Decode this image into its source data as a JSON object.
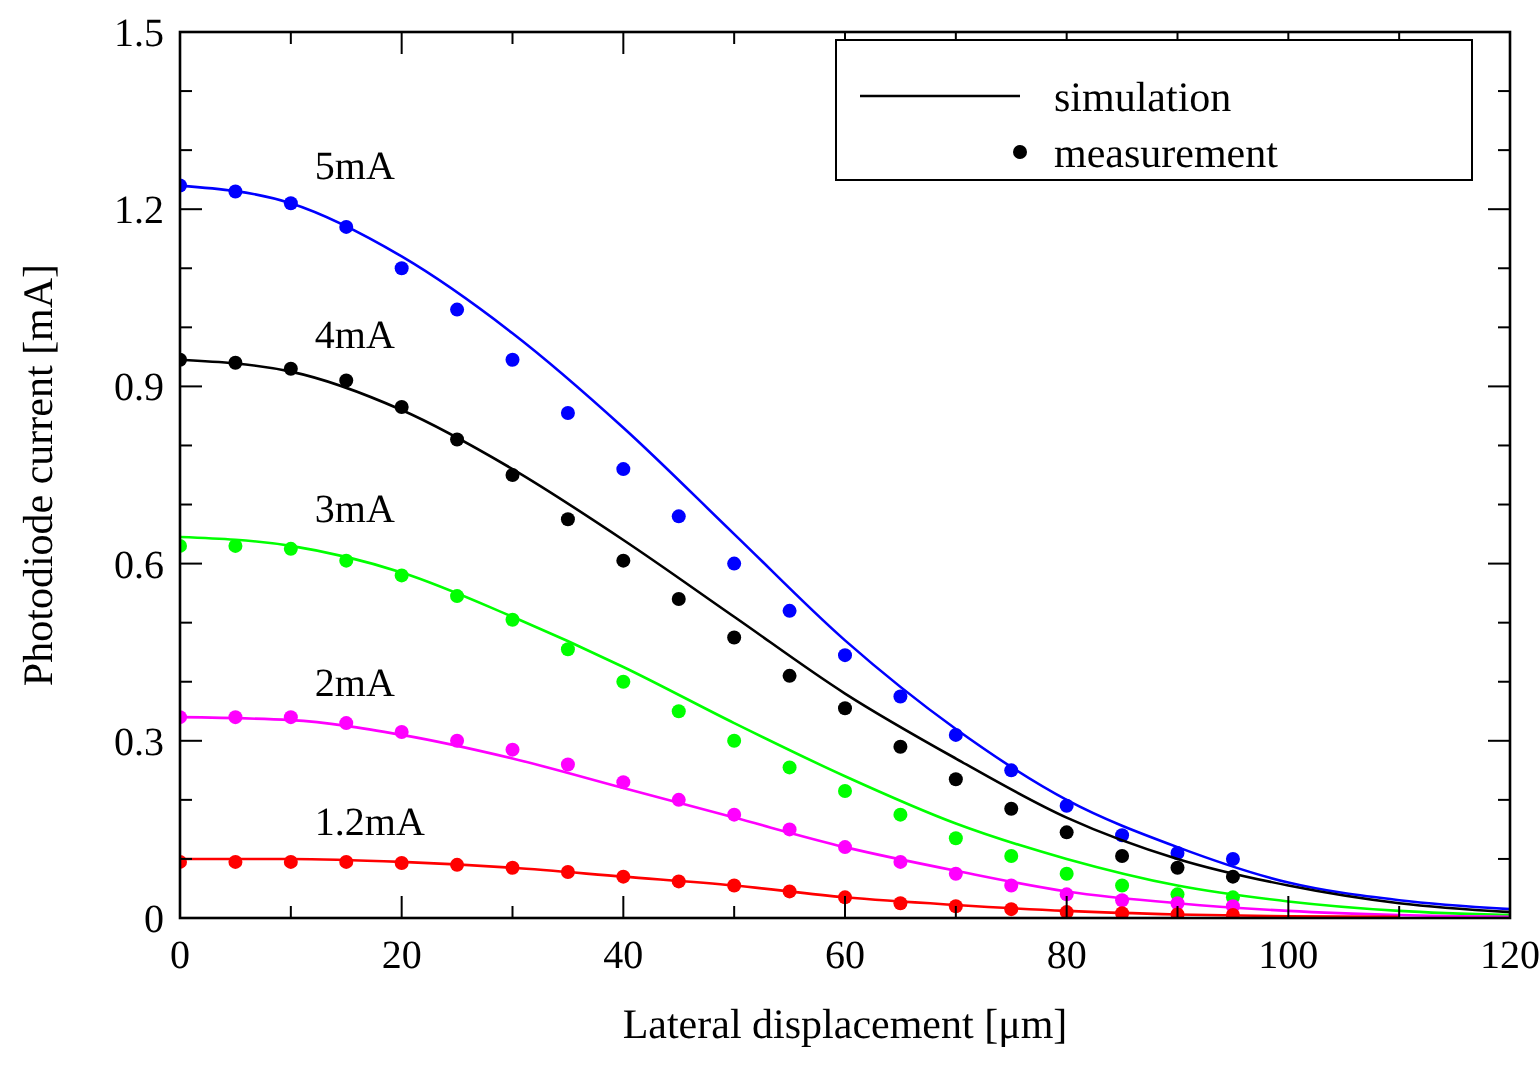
{
  "chart_data": {
    "type": "line",
    "xlabel": "Lateral displacement [μm]",
    "ylabel": "Photodiode current [mA]",
    "xlim": [
      0,
      120
    ],
    "ylim": [
      0,
      1.5
    ],
    "xticks": [
      0,
      {
        "value": 10,
        "label": null
      },
      20,
      {
        "value": 30,
        "label": null
      },
      40,
      {
        "value": 50,
        "label": null
      },
      60,
      {
        "value": 70,
        "label": null
      },
      80,
      {
        "value": 90,
        "label": null
      },
      100,
      {
        "value": 110,
        "label": null
      },
      120
    ],
    "yticks": [
      0,
      {
        "value": 0.1,
        "label": null
      },
      {
        "value": 0.2,
        "label": null
      },
      0.3,
      {
        "value": 0.4,
        "label": null
      },
      {
        "value": 0.5,
        "label": null
      },
      0.6,
      {
        "value": 0.7,
        "label": null
      },
      {
        "value": 0.8,
        "label": null
      },
      0.9,
      {
        "value": 1.0,
        "label": null
      },
      {
        "value": 1.1,
        "label": null
      },
      1.2,
      {
        "value": 1.3,
        "label": null
      },
      {
        "value": 1.4,
        "label": null
      },
      1.5
    ],
    "legend": "top right",
    "grid": false,
    "series": [
      {
        "color": "#0000ff",
        "marker": "none",
        "x": [
          0,
          10,
          20,
          30,
          40,
          50,
          60,
          70,
          80,
          90,
          100,
          110,
          120
        ],
        "values": [
          1.24,
          1.21,
          1.12,
          0.99,
          0.83,
          0.65,
          0.47,
          0.32,
          0.2,
          0.12,
          0.06,
          0.03,
          0.015
        ]
      },
      {
        "type": "scatter",
        "color": "#0000ff",
        "marker": "circle",
        "x": [
          0,
          5,
          10,
          15,
          20,
          25,
          30,
          35,
          40,
          45,
          50,
          55,
          60,
          65,
          70,
          75,
          80,
          85,
          90,
          95
        ],
        "values": [
          1.24,
          1.23,
          1.21,
          1.17,
          1.1,
          1.03,
          0.945,
          0.855,
          0.76,
          0.68,
          0.6,
          0.52,
          0.445,
          0.375,
          0.31,
          0.25,
          0.19,
          0.14,
          0.11,
          0.1
        ]
      },
      {
        "name": "simulation",
        "color": "#000000",
        "marker": "none",
        "x": [
          0,
          10,
          20,
          30,
          40,
          50,
          60,
          70,
          80,
          90,
          100,
          110,
          120
        ],
        "values": [
          0.945,
          0.925,
          0.86,
          0.76,
          0.64,
          0.51,
          0.38,
          0.27,
          0.17,
          0.1,
          0.055,
          0.025,
          0.01
        ]
      },
      {
        "name": "measurement",
        "type": "scatter",
        "color": "#000000",
        "marker": "circle",
        "x": [
          0,
          5,
          10,
          15,
          20,
          25,
          30,
          35,
          40,
          45,
          50,
          55,
          60,
          65,
          70,
          75,
          80,
          85,
          90,
          95
        ],
        "values": [
          0.945,
          0.94,
          0.93,
          0.91,
          0.865,
          0.81,
          0.75,
          0.675,
          0.605,
          0.54,
          0.475,
          0.41,
          0.355,
          0.29,
          0.235,
          0.185,
          0.145,
          0.105,
          0.085,
          0.07
        ]
      },
      {
        "color": "#00ff00",
        "marker": "none",
        "x": [
          0,
          10,
          20,
          30,
          40,
          50,
          60,
          70,
          80,
          90,
          100,
          110,
          120
        ],
        "values": [
          0.645,
          0.63,
          0.585,
          0.51,
          0.425,
          0.33,
          0.24,
          0.16,
          0.1,
          0.055,
          0.028,
          0.012,
          0.005
        ]
      },
      {
        "type": "scatter",
        "color": "#00ff00",
        "marker": "circle",
        "x": [
          0,
          5,
          10,
          15,
          20,
          25,
          30,
          35,
          40,
          45,
          50,
          55,
          60,
          65,
          70,
          75,
          80,
          85,
          90,
          95
        ],
        "values": [
          0.63,
          0.63,
          0.625,
          0.605,
          0.58,
          0.545,
          0.505,
          0.455,
          0.4,
          0.35,
          0.3,
          0.255,
          0.215,
          0.175,
          0.135,
          0.105,
          0.075,
          0.055,
          0.04,
          0.035
        ]
      },
      {
        "color": "#ff00ff",
        "marker": "none",
        "x": [
          0,
          10,
          20,
          30,
          40,
          50,
          60,
          70,
          80,
          90,
          100,
          110,
          120
        ],
        "values": [
          0.34,
          0.335,
          0.31,
          0.27,
          0.22,
          0.17,
          0.12,
          0.08,
          0.045,
          0.025,
          0.012,
          0.005,
          0.002
        ]
      },
      {
        "type": "scatter",
        "color": "#ff00ff",
        "marker": "circle",
        "x": [
          0,
          5,
          10,
          15,
          20,
          25,
          30,
          35,
          40,
          45,
          50,
          55,
          60,
          65,
          70,
          75,
          80,
          85,
          90,
          95
        ],
        "values": [
          0.34,
          0.34,
          0.34,
          0.33,
          0.315,
          0.3,
          0.285,
          0.26,
          0.23,
          0.2,
          0.175,
          0.15,
          0.12,
          0.095,
          0.075,
          0.055,
          0.04,
          0.03,
          0.025,
          0.02
        ]
      },
      {
        "color": "#ff0000",
        "marker": "none",
        "x": [
          0,
          10,
          20,
          30,
          40,
          50,
          60,
          70,
          80,
          90,
          100,
          110
        ],
        "values": [
          0.1,
          0.1,
          0.095,
          0.085,
          0.07,
          0.055,
          0.035,
          0.022,
          0.012,
          0.006,
          0.003,
          0.002
        ]
      },
      {
        "type": "scatter",
        "color": "#ff0000",
        "marker": "circle",
        "x": [
          0,
          5,
          10,
          15,
          20,
          25,
          30,
          35,
          40,
          45,
          50,
          55,
          60,
          65,
          70,
          75,
          80,
          85,
          90,
          95
        ],
        "values": [
          0.095,
          0.095,
          0.095,
          0.095,
          0.093,
          0.09,
          0.085,
          0.078,
          0.07,
          0.062,
          0.055,
          0.045,
          0.035,
          0.025,
          0.02,
          0.015,
          0.01,
          0.008,
          0.006,
          0.005
        ]
      }
    ],
    "annotations": [
      "5mA",
      "4mA",
      "3mA",
      "2mA",
      "1.2mA"
    ]
  }
}
